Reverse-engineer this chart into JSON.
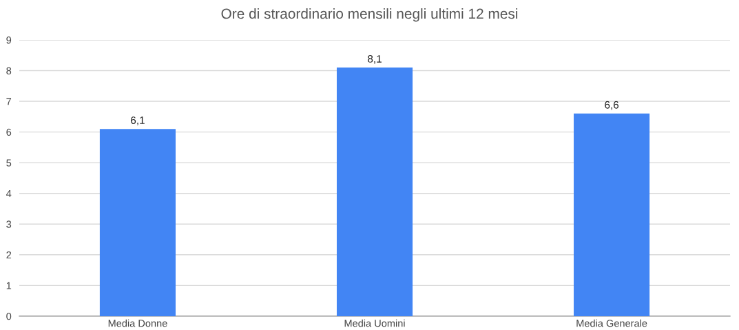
{
  "chart_data": {
    "type": "bar",
    "title": "Ore di straordinario mensili negli ultimi 12 mesi",
    "categories": [
      "Media Donne",
      "Media Uomini",
      "Media Generale"
    ],
    "values": [
      6.1,
      8.1,
      6.6
    ],
    "value_labels": [
      "6,1",
      "8,1",
      "6,6"
    ],
    "color": "#4285f4",
    "ylim": [
      0,
      9
    ],
    "yticks": [
      0,
      1,
      2,
      3,
      4,
      5,
      6,
      7,
      8,
      9
    ],
    "grid": "y",
    "legend": false
  }
}
